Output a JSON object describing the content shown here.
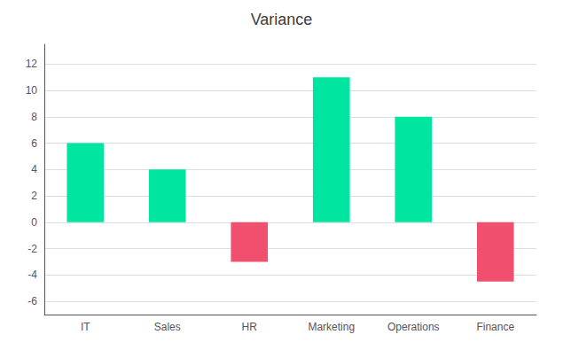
{
  "chart_data": {
    "type": "bar",
    "title": "Variance",
    "categories": [
      "IT",
      "Sales",
      "HR",
      "Marketing",
      "Operations",
      "Finance"
    ],
    "values": [
      6,
      4,
      -3,
      11,
      8,
      -4.5
    ],
    "colors": [
      "#00E5A0",
      "#00E5A0",
      "#F0506E",
      "#00E5A0",
      "#00E5A0",
      "#F0506E"
    ],
    "ylim": [
      -7,
      13.5
    ],
    "yticks": [
      -6,
      -4,
      -2,
      0,
      2,
      4,
      6,
      8,
      10,
      12
    ],
    "grid": true
  }
}
